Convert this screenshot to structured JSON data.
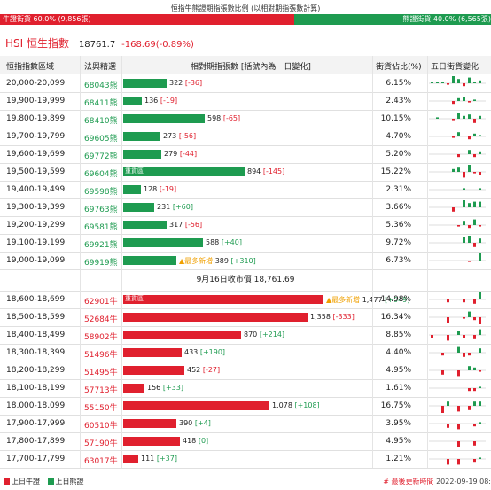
{
  "page": {
    "title": "恒指牛熊證期指張數比例 (以相對期指張數計算)",
    "bull_label": "牛證街貨 60.0% (9,856張)",
    "bear_label": "熊證街貨 40.0% (6,565張)",
    "bull_ratio": 0.6
  },
  "index": {
    "name": "HSI 恒生指數",
    "price": "18761.7",
    "change": "-168.69(-0.89%)"
  },
  "table": {
    "headers": {
      "range": "恒指指數區域",
      "code": "法興精選",
      "qty": "相對期指張數 [括號內為一日變化]",
      "pct": "街貨佔比(%)",
      "five": "五日街貨變化"
    },
    "bear_rows": [
      {
        "range": "20,000-20,099",
        "code": "68043熊",
        "qty": "322",
        "chg": "[-36]",
        "pct": "6.15%",
        "heavy": "",
        "new": "",
        "v": 322,
        "spark": [
          1,
          1,
          1,
          -1,
          5,
          3,
          -2,
          4,
          1,
          2
        ]
      },
      {
        "range": "19,900-19,999",
        "code": "68411熊",
        "qty": "136",
        "chg": "[-19]",
        "pct": "2.43%",
        "heavy": "",
        "new": "",
        "v": 136,
        "spark": [
          0,
          0,
          0,
          0,
          -2,
          2,
          3,
          -1,
          1,
          0
        ]
      },
      {
        "range": "19,800-19,899",
        "code": "68410熊",
        "qty": "598",
        "chg": "[-65]",
        "pct": "10.15%",
        "heavy": "",
        "new": "",
        "v": 598,
        "spark": [
          0,
          1,
          0,
          0,
          -1,
          4,
          2,
          3,
          -3,
          2
        ]
      },
      {
        "range": "19,700-19,799",
        "code": "69605熊",
        "qty": "273",
        "chg": "[-56]",
        "pct": "4.70%",
        "heavy": "",
        "new": "",
        "v": 273,
        "spark": [
          0,
          0,
          0,
          0,
          -1,
          3,
          0,
          -2,
          2,
          1
        ]
      },
      {
        "range": "19,600-19,699",
        "code": "69772熊",
        "qty": "279",
        "chg": "[-44]",
        "pct": "5.20%",
        "heavy": "",
        "new": "",
        "v": 279,
        "spark": [
          0,
          0,
          0,
          0,
          0,
          -2,
          0,
          3,
          -2,
          2
        ]
      },
      {
        "range": "19,500-19,599",
        "code": "69604熊",
        "qty": "894",
        "chg": "[-145]",
        "pct": "15.22%",
        "heavy": "重貨區",
        "new": "",
        "v": 894,
        "spark": [
          0,
          0,
          0,
          0,
          2,
          3,
          -4,
          5,
          -1,
          -2
        ]
      },
      {
        "range": "19,400-19,499",
        "code": "69598熊",
        "qty": "128",
        "chg": "[-19]",
        "pct": "2.31%",
        "heavy": "",
        "new": "",
        "v": 128,
        "spark": [
          0,
          0,
          0,
          0,
          0,
          0,
          1,
          0,
          0,
          1
        ]
      },
      {
        "range": "19,300-19,399",
        "code": "69763熊",
        "qty": "231",
        "chg": "[+60]",
        "pct": "3.66%",
        "heavy": "",
        "new": "",
        "v": 231,
        "spark": [
          0,
          0,
          0,
          0,
          -3,
          0,
          5,
          3,
          4,
          4
        ]
      },
      {
        "range": "19,200-19,299",
        "code": "69581熊",
        "qty": "317",
        "chg": "[-56]",
        "pct": "5.36%",
        "heavy": "",
        "new": "",
        "v": 317,
        "spark": [
          0,
          0,
          0,
          0,
          0,
          -1,
          3,
          -2,
          4,
          -1
        ]
      },
      {
        "range": "19,100-19,199",
        "code": "69921熊",
        "qty": "588",
        "chg": "[+40]",
        "pct": "9.72%",
        "heavy": "",
        "new": "",
        "v": 588,
        "spark": [
          0,
          0,
          0,
          0,
          0,
          0,
          4,
          5,
          -3,
          3
        ]
      },
      {
        "range": "19,000-19,099",
        "code": "69919熊",
        "qty": "389",
        "chg": "[+310]",
        "pct": "6.73%",
        "heavy": "",
        "new": "▲最多新增",
        "v": 389,
        "spark": [
          0,
          0,
          0,
          0,
          0,
          0,
          0,
          -1,
          0,
          6
        ]
      }
    ],
    "separator": "9月16日收市價 18,761.69",
    "bull_rows": [
      {
        "range": "18,600-18,699",
        "code": "62901牛",
        "qty": "1,477",
        "chg": "[+549]",
        "pct": "14.98%",
        "heavy": "重貨區",
        "new": "▲最多新增",
        "v": 1477,
        "spark": [
          0,
          0,
          0,
          -2,
          0,
          0,
          -2,
          0,
          -3,
          7
        ]
      },
      {
        "range": "18,500-18,599",
        "code": "52684牛",
        "qty": "1,358",
        "chg": "[-333]",
        "pct": "16.34%",
        "heavy": "",
        "new": "",
        "v": 1358,
        "spark": [
          0,
          0,
          0,
          -4,
          0,
          0,
          -1,
          4,
          -2,
          -5
        ]
      },
      {
        "range": "18,400-18,499",
        "code": "58902牛",
        "qty": "870",
        "chg": "[+214]",
        "pct": "8.85%",
        "heavy": "",
        "new": "",
        "v": 870,
        "spark": [
          -2,
          0,
          0,
          -4,
          0,
          3,
          -2,
          0,
          -3,
          4
        ]
      },
      {
        "range": "18,300-18,399",
        "code": "51496牛",
        "qty": "433",
        "chg": "[+190]",
        "pct": "4.40%",
        "heavy": "",
        "new": "",
        "v": 433,
        "spark": [
          0,
          0,
          -2,
          0,
          0,
          4,
          -3,
          -2,
          0,
          3
        ]
      },
      {
        "range": "18,200-18,299",
        "code": "51495牛",
        "qty": "452",
        "chg": "[-27]",
        "pct": "4.95%",
        "heavy": "",
        "new": "",
        "v": 452,
        "spark": [
          0,
          0,
          -3,
          0,
          0,
          -4,
          0,
          3,
          2,
          -1
        ]
      },
      {
        "range": "18,100-18,199",
        "code": "57713牛",
        "qty": "156",
        "chg": "[+33]",
        "pct": "1.61%",
        "heavy": "",
        "new": "",
        "v": 156,
        "spark": [
          0,
          0,
          0,
          0,
          0,
          0,
          0,
          -2,
          -2,
          1
        ]
      },
      {
        "range": "18,000-18,099",
        "code": "55150牛",
        "qty": "1,078",
        "chg": "[+108]",
        "pct": "16.75%",
        "heavy": "",
        "new": "",
        "v": 1078,
        "spark": [
          0,
          0,
          -5,
          3,
          0,
          -4,
          0,
          -3,
          3,
          3
        ]
      },
      {
        "range": "17,900-17,999",
        "code": "60510牛",
        "qty": "390",
        "chg": "[+4]",
        "pct": "3.95%",
        "heavy": "",
        "new": "",
        "v": 390,
        "spark": [
          0,
          0,
          0,
          -3,
          0,
          -4,
          0,
          0,
          -2,
          1
        ]
      },
      {
        "range": "17,800-17,899",
        "code": "57190牛",
        "qty": "418",
        "chg": "[0]",
        "pct": "4.95%",
        "heavy": "",
        "new": "",
        "v": 418,
        "spark": [
          0,
          0,
          0,
          0,
          0,
          -4,
          0,
          0,
          -3,
          0
        ]
      },
      {
        "range": "17,700-17,799",
        "code": "63017牛",
        "qty": "111",
        "chg": "[+37]",
        "pct": "1.21%",
        "heavy": "",
        "new": "",
        "v": 111,
        "spark": [
          0,
          0,
          0,
          -4,
          0,
          -4,
          0,
          0,
          -2,
          1
        ]
      }
    ],
    "max_value": 1500
  },
  "footer": {
    "legend_bull": "上日牛證",
    "legend_bear": "上日熊證",
    "updated_label": "# 最後更新時間",
    "updated_time": "2022-09-19 08:"
  },
  "colors": {
    "bull": "#e0202e",
    "bear": "#1e9b50",
    "new": "#f0a000"
  }
}
